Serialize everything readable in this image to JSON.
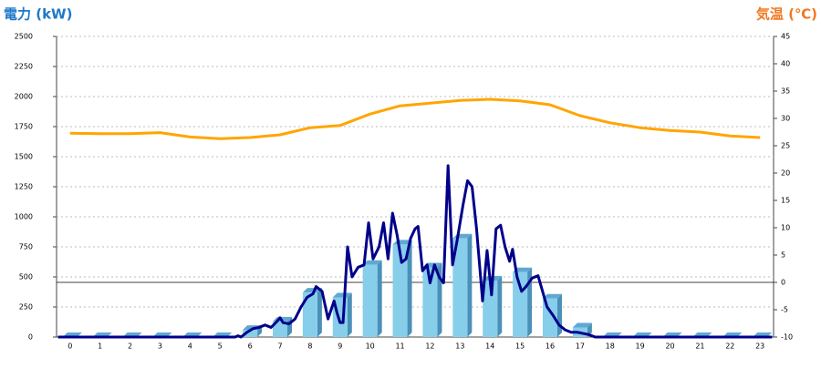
{
  "chart_data": {
    "type": "bar",
    "y_label": "電力 (kW)",
    "y2_label": "気温 (℃)",
    "categories": [
      "0",
      "1",
      "2",
      "3",
      "4",
      "5",
      "6",
      "7",
      "8",
      "9",
      "10",
      "11",
      "12",
      "13",
      "14",
      "15",
      "16",
      "17",
      "18",
      "19",
      "20",
      "21",
      "22",
      "23"
    ],
    "xlim": [
      -0.45,
      23.45
    ],
    "ylim": [
      0,
      2500
    ],
    "yticks": [
      0,
      250,
      500,
      750,
      1000,
      1250,
      1500,
      1750,
      2000,
      2250,
      2500
    ],
    "y2lim": [
      -10,
      45
    ],
    "y2ticks": [
      -10,
      -5,
      0,
      5,
      10,
      15,
      20,
      25,
      30,
      35,
      40,
      45
    ],
    "grid": true,
    "series": [
      {
        "type": "bar",
        "color": "#87ceeb",
        "values": [
          0,
          0,
          0,
          0,
          0,
          0,
          60,
          130,
          370,
          330,
          600,
          770,
          580,
          820,
          470,
          540,
          320,
          80,
          0,
          0,
          0,
          0,
          0,
          0
        ]
      },
      {
        "type": "line",
        "color": "#00008b",
        "x": [
          -0.4,
          5.5,
          5.6,
          5.7,
          5.9,
          6.1,
          6.3,
          6.5,
          6.7,
          6.9,
          7.0,
          7.1,
          7.3,
          7.5,
          7.7,
          7.9,
          8.1,
          8.2,
          8.4,
          8.6,
          8.8,
          8.9,
          9.0,
          9.1,
          9.25,
          9.4,
          9.6,
          9.8,
          9.95,
          10.1,
          10.3,
          10.45,
          10.6,
          10.75,
          10.9,
          11.05,
          11.2,
          11.35,
          11.5,
          11.6,
          11.75,
          11.9,
          12.0,
          12.15,
          12.3,
          12.45,
          12.6,
          12.75,
          12.9,
          13.1,
          13.25,
          13.4,
          13.55,
          13.75,
          13.9,
          14.05,
          14.2,
          14.35,
          14.5,
          14.65,
          14.75,
          14.9,
          15.05,
          15.2,
          15.4,
          15.6,
          15.75,
          15.9,
          16.1,
          16.3,
          16.5,
          16.7,
          16.9,
          17.1,
          17.3,
          17.5,
          23.4
        ],
        "values": [
          0,
          0,
          10,
          0,
          40,
          70,
          80,
          100,
          80,
          130,
          160,
          120,
          110,
          150,
          250,
          330,
          360,
          420,
          380,
          150,
          300,
          200,
          120,
          120,
          750,
          500,
          580,
          600,
          950,
          650,
          750,
          950,
          650,
          1030,
          850,
          620,
          650,
          820,
          900,
          920,
          550,
          600,
          450,
          600,
          500,
          450,
          1425,
          600,
          800,
          1100,
          1300,
          1250,
          900,
          300,
          720,
          350,
          900,
          930,
          750,
          630,
          730,
          500,
          380,
          420,
          490,
          510,
          380,
          250,
          180,
          100,
          60,
          40,
          40,
          30,
          20,
          0,
          0
        ]
      },
      {
        "type": "line",
        "axis": "y2",
        "color": "#ffa500",
        "values": [
          27.3,
          27.2,
          27.2,
          27.4,
          26.6,
          26.3,
          26.5,
          27,
          28.3,
          28.7,
          30.8,
          32.3,
          32.8,
          33.3,
          33.5,
          33.2,
          32.5,
          30.5,
          29.2,
          28.3,
          27.8,
          27.5,
          26.8,
          26.5
        ]
      }
    ]
  }
}
